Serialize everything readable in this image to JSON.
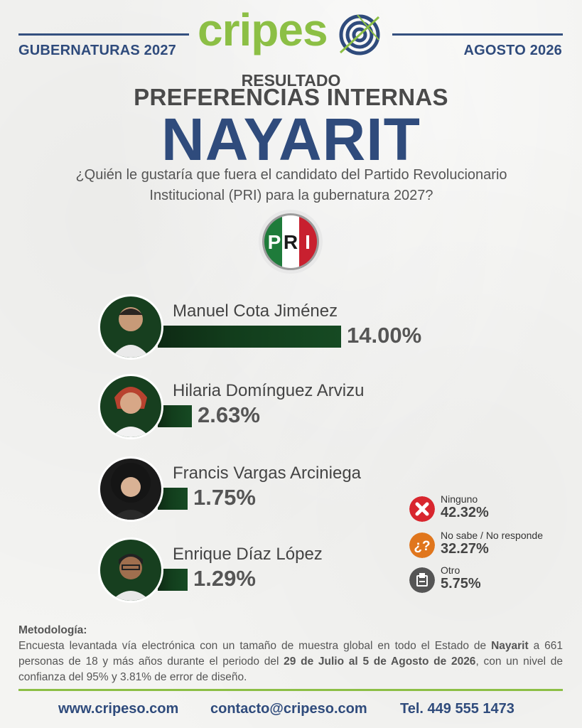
{
  "header": {
    "left": "GUBERNATURAS 2027",
    "right": "AGOSTO 2026",
    "logo_part1": "cripes",
    "logo_part2": "o"
  },
  "titles": {
    "line1": "RESULTADO",
    "line2": "PREFERENCIAS INTERNAS",
    "line3": "NAYARIT"
  },
  "question": {
    "line1": "¿Quién le gustaría que fuera el candidato del Partido Revolucionario",
    "line2": "Institucional (PRI) para la gubernatura 2027?"
  },
  "party_logo": {
    "letters": [
      "P",
      "R",
      "I"
    ],
    "colors": [
      "#1e7b3a",
      "#ffffff",
      "#c8202f"
    ]
  },
  "candidates": [
    {
      "name": "Manuel Cota Jiménez",
      "value": 14.0,
      "display": "14.00%"
    },
    {
      "name": "Hilaria Domínguez Arvizu",
      "value": 2.63,
      "display": "2.63%"
    },
    {
      "name": "Francis Vargas Arciniega",
      "value": 1.75,
      "display": "1.75%"
    },
    {
      "name": "Enrique Díaz López",
      "value": 1.29,
      "display": "1.29%"
    }
  ],
  "other_options": [
    {
      "label": "Ninguno",
      "value": "42.32%",
      "icon": "x-icon",
      "color": "#d8262e"
    },
    {
      "label": "No sabe / No responde",
      "value": "32.27%",
      "icon": "question-icon",
      "color": "#e0761d"
    },
    {
      "label": "Otro",
      "value": "5.75%",
      "icon": "ballot-box-icon",
      "color": "#555555"
    }
  ],
  "methodology": {
    "heading": "Metodología:",
    "text_1": "Encuesta levantada vía electrónica con un tamaño de muestra global en todo el Estado de ",
    "bold_1": "Nayarit",
    "text_2": " a 661 personas de 18 y más años durante el periodo del ",
    "bold_2": "29 de Julio al 5 de Agosto de 2026",
    "text_3": ", con un nivel de confianza del 95% y 3.81% de error de diseño."
  },
  "footer": {
    "website": "www.cripeso.com",
    "email": "contacto@cripeso.com",
    "phone": "Tel. 449 555 1473"
  },
  "colors": {
    "brand_blue": "#2f4b7c",
    "brand_green": "#8cbf45",
    "bar_green": "#123d1c"
  }
}
